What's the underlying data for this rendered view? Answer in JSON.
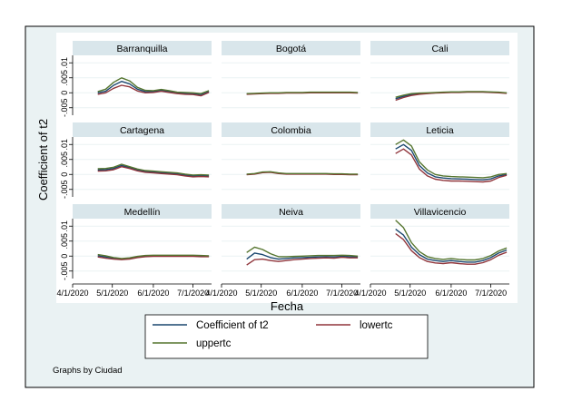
{
  "chart_data": {
    "type": "line",
    "ylabel": "Coefficient of t2",
    "xlabel": "Fecha",
    "note": "Graphs by Ciudad",
    "yticks": [
      "-.005",
      "0",
      ".005",
      ".01"
    ],
    "ylim": [
      -0.0075,
      0.0125
    ],
    "xticks": [
      "4/1/2020",
      "5/1/2020",
      "6/1/2020",
      "7/1/2020"
    ],
    "xlim": [
      "2020-04-01",
      "2020-07-15"
    ],
    "legend": {
      "position": "bottom",
      "entries": [
        "Coefficient of t2",
        "lowertc",
        "uppertc"
      ]
    },
    "colors": {
      "coef": "#1a476f",
      "lower": "#90353b",
      "upper": "#55752f"
    },
    "x_dates": [
      "2020-04-20",
      "2020-04-26",
      "2020-05-02",
      "2020-05-08",
      "2020-05-14",
      "2020-05-20",
      "2020-05-26",
      "2020-06-01",
      "2020-06-07",
      "2020-06-13",
      "2020-06-19",
      "2020-06-25",
      "2020-07-01",
      "2020-07-07",
      "2020-07-13"
    ],
    "panels": [
      {
        "title": "Barranquilla",
        "series": [
          {
            "name": "Coefficient of t2",
            "values": [
              0.0,
              0.0005,
              0.0025,
              0.0038,
              0.003,
              0.0012,
              0.0004,
              0.0004,
              0.0008,
              0.0004,
              -0.0001,
              -0.0002,
              -0.0003,
              -0.0006,
              0.0004
            ]
          },
          {
            "name": "lowertc",
            "values": [
              -0.0005,
              0.0,
              0.0015,
              0.0025,
              0.002,
              0.0006,
              0.0,
              0.0001,
              0.0005,
              0.0001,
              -0.0003,
              -0.0005,
              -0.0006,
              -0.001,
              0.0001
            ]
          },
          {
            "name": "uppertc",
            "values": [
              0.0004,
              0.0012,
              0.0035,
              0.005,
              0.004,
              0.0018,
              0.0008,
              0.0007,
              0.0011,
              0.0007,
              0.0002,
              0.0001,
              0.0,
              -0.0003,
              0.0007
            ]
          }
        ]
      },
      {
        "title": "Bogotá",
        "series": [
          {
            "name": "Coefficient of t2",
            "values": [
              -0.0004,
              -0.0003,
              -0.0002,
              -0.0001,
              -0.0001,
              0.0,
              0.0,
              0.0,
              0.0001,
              0.0001,
              0.0001,
              0.0001,
              0.0001,
              0.0001,
              0.0
            ]
          },
          {
            "name": "lowertc",
            "values": [
              -0.0005,
              -0.0004,
              -0.0003,
              -0.0002,
              -0.0002,
              -0.0001,
              -0.0001,
              -0.0001,
              0.0,
              0.0,
              0.0,
              0.0,
              0.0,
              0.0,
              -0.0001
            ]
          },
          {
            "name": "uppertc",
            "values": [
              -0.0003,
              -0.0002,
              -0.0001,
              0.0,
              0.0,
              0.0001,
              0.0001,
              0.0001,
              0.0002,
              0.0002,
              0.0002,
              0.0002,
              0.0002,
              0.0002,
              0.0001
            ]
          }
        ]
      },
      {
        "title": "Cali",
        "series": [
          {
            "name": "Coefficient of t2",
            "values": [
              -0.002,
              -0.0012,
              -0.0006,
              -0.0003,
              -0.0002,
              0.0,
              0.0001,
              0.0002,
              0.0002,
              0.0003,
              0.0003,
              0.0003,
              0.0002,
              0.0001,
              -0.0001
            ]
          },
          {
            "name": "lowertc",
            "values": [
              -0.0025,
              -0.0016,
              -0.0009,
              -0.0005,
              -0.0003,
              -0.0001,
              0.0,
              0.0001,
              0.0001,
              0.0002,
              0.0002,
              0.0002,
              0.0001,
              0.0,
              -0.0002
            ]
          },
          {
            "name": "uppertc",
            "values": [
              -0.0015,
              -0.0008,
              -0.0003,
              -0.0001,
              0.0,
              0.0001,
              0.0002,
              0.0003,
              0.0003,
              0.0004,
              0.0004,
              0.0004,
              0.0003,
              0.0002,
              0.0
            ]
          }
        ]
      },
      {
        "title": "Cartagena",
        "series": [
          {
            "name": "Coefficient of t2",
            "values": [
              0.0015,
              0.0016,
              0.002,
              0.003,
              0.0023,
              0.0015,
              0.001,
              0.0008,
              0.0006,
              0.0004,
              0.0002,
              -0.0002,
              -0.0005,
              -0.0004,
              -0.0005
            ]
          },
          {
            "name": "lowertc",
            "values": [
              0.0011,
              0.0012,
              0.0016,
              0.0026,
              0.002,
              0.0012,
              0.0007,
              0.0005,
              0.0003,
              0.0001,
              -0.0001,
              -0.0005,
              -0.0008,
              -0.0007,
              -0.0008
            ]
          },
          {
            "name": "uppertc",
            "values": [
              0.0019,
              0.002,
              0.0024,
              0.0034,
              0.0026,
              0.0018,
              0.0013,
              0.0011,
              0.0009,
              0.0007,
              0.0005,
              0.0001,
              -0.0002,
              -0.0001,
              -0.0002
            ]
          }
        ]
      },
      {
        "title": "Colombia",
        "series": [
          {
            "name": "Coefficient of t2",
            "values": [
              0.0,
              0.0002,
              0.0007,
              0.0008,
              0.0004,
              0.0002,
              0.0002,
              0.0002,
              0.0002,
              0.0002,
              0.0002,
              0.0001,
              0.0001,
              0.0,
              0.0
            ]
          },
          {
            "name": "lowertc",
            "values": [
              -0.0001,
              0.0001,
              0.0006,
              0.0007,
              0.0003,
              0.0001,
              0.0001,
              0.0001,
              0.0001,
              0.0001,
              0.0001,
              0.0,
              0.0,
              -0.0001,
              -0.0001
            ]
          },
          {
            "name": "uppertc",
            "values": [
              0.0001,
              0.0003,
              0.0008,
              0.0009,
              0.0005,
              0.0003,
              0.0003,
              0.0003,
              0.0003,
              0.0003,
              0.0003,
              0.0002,
              0.0002,
              0.0001,
              0.0001
            ]
          }
        ]
      },
      {
        "title": "Leticia",
        "series": [
          {
            "name": "Coefficient of t2",
            "values": [
              0.0085,
              0.01,
              0.008,
              0.003,
              0.0005,
              -0.0008,
              -0.0012,
              -0.0014,
              -0.0015,
              -0.0016,
              -0.0017,
              -0.0018,
              -0.0015,
              -0.0005,
              0.0
            ]
          },
          {
            "name": "lowertc",
            "values": [
              0.007,
              0.0085,
              0.0065,
              0.0018,
              -0.0005,
              -0.0016,
              -0.002,
              -0.0022,
              -0.0022,
              -0.0023,
              -0.0024,
              -0.0025,
              -0.0022,
              -0.001,
              -0.0003
            ]
          },
          {
            "name": "uppertc",
            "values": [
              0.01,
              0.0115,
              0.0095,
              0.0042,
              0.0015,
              0.0,
              -0.0005,
              -0.0007,
              -0.0008,
              -0.0009,
              -0.001,
              -0.0011,
              -0.0008,
              0.0,
              0.0003
            ]
          }
        ]
      },
      {
        "title": "Medellín",
        "series": [
          {
            "name": "Coefficient of t2",
            "values": [
              0.0001,
              -0.0003,
              -0.0008,
              -0.001,
              -0.0008,
              -0.0003,
              0.0,
              0.0001,
              0.0001,
              0.0001,
              0.0001,
              0.0001,
              0.0001,
              0.0,
              -0.0001
            ]
          },
          {
            "name": "lowertc",
            "values": [
              -0.0003,
              -0.0007,
              -0.001,
              -0.0012,
              -0.001,
              -0.0005,
              -0.0002,
              -0.0001,
              -0.0001,
              -0.0001,
              -0.0001,
              -0.0001,
              -0.0001,
              -0.0002,
              -0.0002
            ]
          },
          {
            "name": "uppertc",
            "values": [
              0.0005,
              0.0001,
              -0.0005,
              -0.0008,
              -0.0006,
              -0.0001,
              0.0002,
              0.0003,
              0.0003,
              0.0003,
              0.0003,
              0.0003,
              0.0003,
              0.0002,
              0.0001
            ]
          }
        ]
      },
      {
        "title": "Neiva",
        "series": [
          {
            "name": "Coefficient of t2",
            "values": [
              -0.001,
              0.001,
              0.0005,
              -0.0005,
              -0.001,
              -0.0008,
              -0.0006,
              -0.0005,
              -0.0004,
              -0.0003,
              -0.0002,
              -0.0003,
              -0.0001,
              -0.0002,
              -0.0003
            ]
          },
          {
            "name": "lowertc",
            "values": [
              -0.003,
              -0.0012,
              -0.001,
              -0.0015,
              -0.0018,
              -0.0015,
              -0.0012,
              -0.001,
              -0.0008,
              -0.0007,
              -0.0006,
              -0.0007,
              -0.0004,
              -0.0006,
              -0.0006
            ]
          },
          {
            "name": "uppertc",
            "values": [
              0.0012,
              0.003,
              0.0022,
              0.0008,
              -0.0002,
              -0.0002,
              -0.0001,
              0.0,
              0.0001,
              0.0002,
              0.0002,
              0.0002,
              0.0003,
              0.0002,
              0.0
            ]
          }
        ]
      },
      {
        "title": "Villavicencio",
        "series": [
          {
            "name": "Coefficient of t2",
            "values": [
              0.009,
              0.007,
              0.003,
              0.0005,
              -0.001,
              -0.0015,
              -0.0018,
              -0.0015,
              -0.0018,
              -0.002,
              -0.002,
              -0.0015,
              -0.0005,
              0.001,
              0.002
            ]
          },
          {
            "name": "lowertc",
            "values": [
              0.0075,
              0.0055,
              0.0018,
              -0.0005,
              -0.0018,
              -0.0023,
              -0.0025,
              -0.0022,
              -0.0025,
              -0.0027,
              -0.0027,
              -0.0022,
              -0.0012,
              0.0003,
              0.0013
            ]
          },
          {
            "name": "uppertc",
            "values": [
              0.012,
              0.0095,
              0.0045,
              0.0015,
              -0.0002,
              -0.0008,
              -0.0011,
              -0.0008,
              -0.0011,
              -0.0013,
              -0.0013,
              -0.0008,
              0.0002,
              0.0017,
              0.0027
            ]
          }
        ]
      }
    ]
  }
}
